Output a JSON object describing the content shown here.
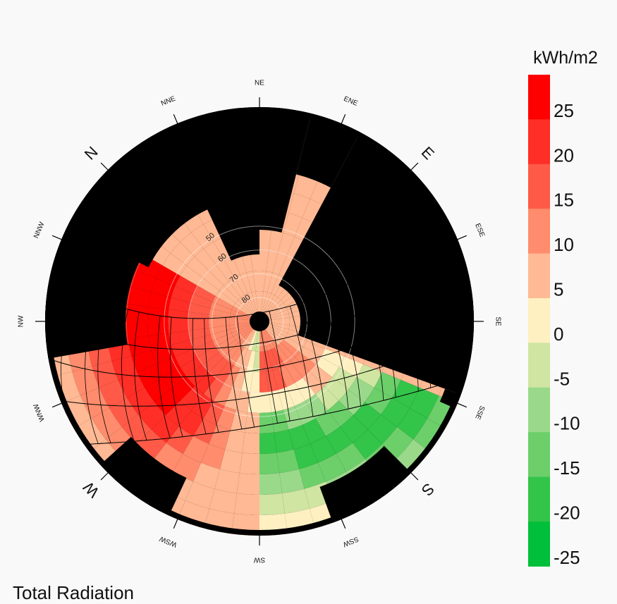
{
  "chart_data": {
    "type": "heatmap",
    "title": "Total Radiation",
    "projection": "polar sun-path diagram (sky view)",
    "legend": {
      "title": "kWh/m2",
      "placement": "right",
      "bins": [
        {
          "from": 25,
          "to": 30,
          "color": "#ff0000"
        },
        {
          "from": 20,
          "to": 25,
          "color": "#ff2e26"
        },
        {
          "from": 15,
          "to": 20,
          "color": "#ff5a48"
        },
        {
          "from": 10,
          "to": 15,
          "color": "#ff8c6c"
        },
        {
          "from": 5,
          "to": 10,
          "color": "#ffb994"
        },
        {
          "from": 0,
          "to": 5,
          "color": "#fff0c1"
        },
        {
          "from": -5,
          "to": 0,
          "color": "#cfe5a1"
        },
        {
          "from": -10,
          "to": -5,
          "color": "#9ad98a"
        },
        {
          "from": -15,
          "to": -10,
          "color": "#6ccf6a"
        },
        {
          "from": -20,
          "to": -15,
          "color": "#33c44a"
        },
        {
          "from": -25,
          "to": -20,
          "color": "#00bf3a"
        }
      ],
      "tick_labels": [
        "25",
        "20",
        "15",
        "10",
        "5",
        "0",
        "-5",
        "-10",
        "-15",
        "-20",
        "-25"
      ]
    },
    "directions": [
      {
        "label": "N",
        "major": true
      },
      {
        "label": "NNE",
        "major": false
      },
      {
        "label": "NE",
        "major": false
      },
      {
        "label": "ENE",
        "major": false
      },
      {
        "label": "E",
        "major": true
      },
      {
        "label": "ESE",
        "major": false
      },
      {
        "label": "SE",
        "major": false
      },
      {
        "label": "SSE",
        "major": false
      },
      {
        "label": "S",
        "major": true
      },
      {
        "label": "SSW",
        "major": false
      },
      {
        "label": "SW",
        "major": false
      },
      {
        "label": "WSW",
        "major": false
      },
      {
        "label": "W",
        "major": true
      },
      {
        "label": "WNW",
        "major": false
      },
      {
        "label": "NW",
        "major": false
      },
      {
        "label": "NNW",
        "major": false
      }
    ],
    "altitude_rings": [
      "50",
      "60",
      "70",
      "80"
    ],
    "obstruction_color": "#000000",
    "sun_path_color": "#000000"
  }
}
